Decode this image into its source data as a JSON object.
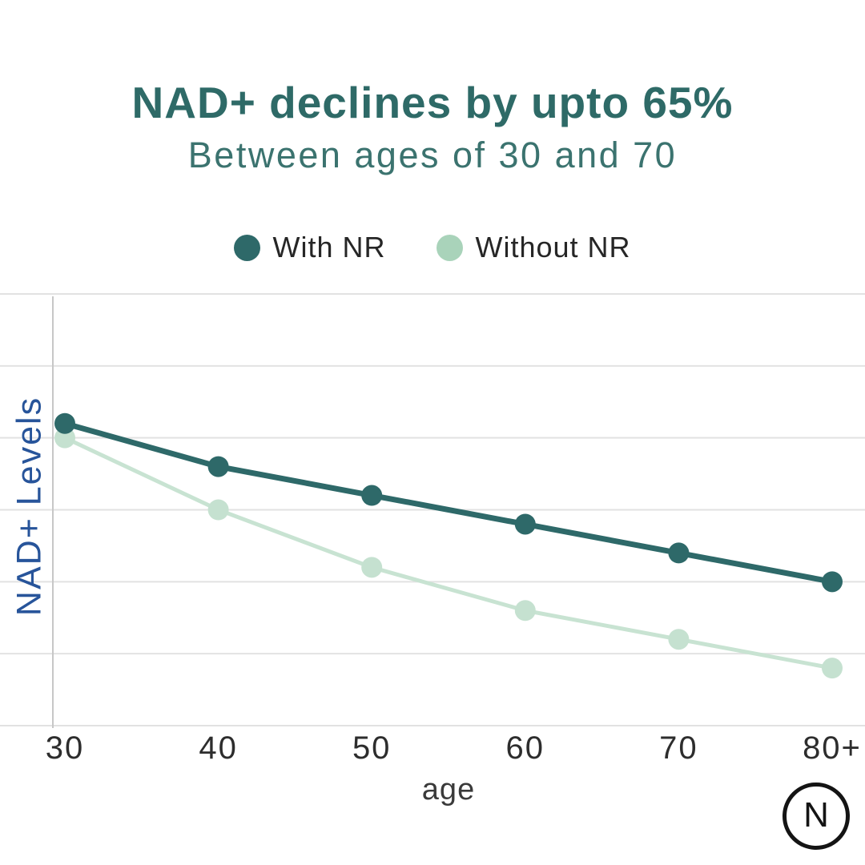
{
  "header": {
    "title": "NAD+ declines by upto 65%",
    "subtitle": "Between ages of 30 and 70"
  },
  "legend": [
    {
      "label": "With NR",
      "color": "#2e6969"
    },
    {
      "label": "Without NR",
      "color": "#a9d3ba"
    }
  ],
  "chart_data": {
    "type": "line",
    "title": "NAD+ declines by upto 65%",
    "subtitle": "Between ages of 30 and 70",
    "categories": [
      "30",
      "40",
      "50",
      "60",
      "70",
      "80+"
    ],
    "x": [
      30,
      40,
      50,
      60,
      70,
      80
    ],
    "xlabel": "age",
    "ylabel": "NAD+ Levels",
    "ylim": [
      0,
      150
    ],
    "ytick_step": 25,
    "yticks_visible": false,
    "grid": true,
    "legend_position": "top",
    "series": [
      {
        "name": "With NR",
        "color": "#2e6969",
        "dot_color": "#2e6969",
        "line_width": 7,
        "values": [
          105,
          90,
          80,
          70,
          60,
          50
        ]
      },
      {
        "name": "Without NR",
        "color": "#c8e3d2",
        "dot_color": "#c5e1d0",
        "line_width": 5,
        "values": [
          100,
          75,
          55,
          40,
          30,
          20
        ]
      }
    ],
    "colors": {
      "grid": "#e2e2e2",
      "axis": "#c7c7c7",
      "tick_label": "#2d2d2d",
      "xlabel": "#3a3a3a",
      "ylabel": "#27549a"
    }
  },
  "logo": {
    "letter": "N"
  }
}
